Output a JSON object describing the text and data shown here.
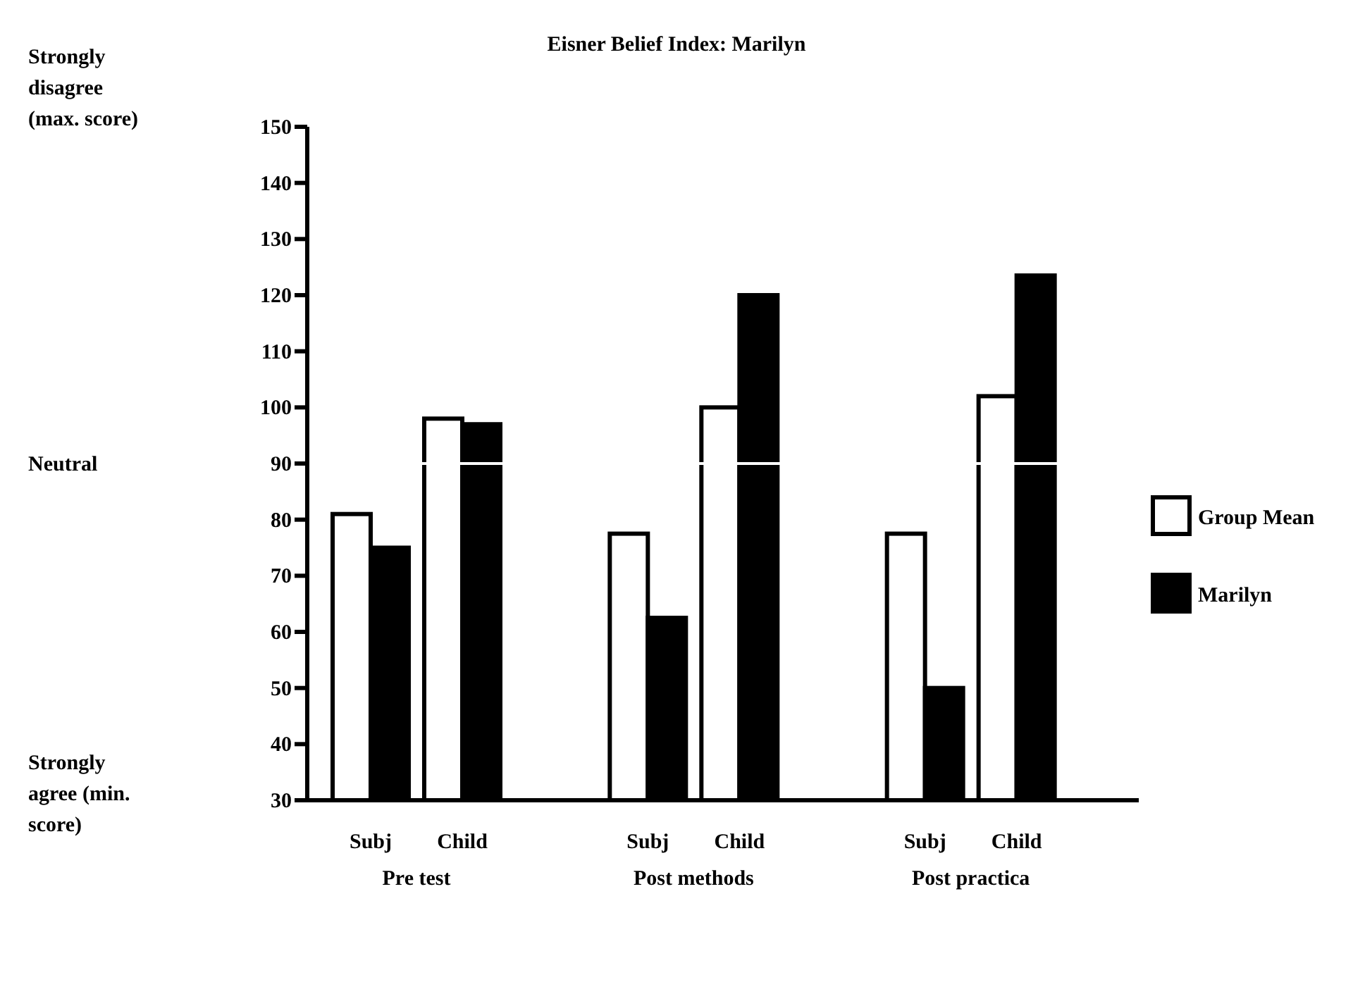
{
  "chart_data": {
    "type": "bar",
    "title": "Eisner Belief Index: Marilyn",
    "categories": [
      "Subj",
      "Child",
      "Subj",
      "Child",
      "Subj",
      "Child"
    ],
    "series": [
      {
        "name": "Group Mean",
        "color": "#ffffff",
        "values": [
          81,
          98,
          77.5,
          100,
          77.5,
          102
        ]
      },
      {
        "name": "Marilyn",
        "color": "#000000",
        "values": [
          75,
          97,
          62.5,
          120,
          50,
          123.5
        ]
      }
    ],
    "ylim": [
      30,
      150
    ],
    "yticks": [
      30,
      40,
      50,
      60,
      70,
      80,
      90,
      100,
      110,
      120,
      130,
      140,
      150
    ],
    "ref_lines": [
      {
        "axis": "y",
        "value": 90,
        "label": "Neutral",
        "color": "#ffffff"
      }
    ],
    "annotations": [
      "Strongly disagree (max. score)",
      "Strongly agree (min. score)",
      "Pre test",
      "Post methods",
      "Post practica"
    ],
    "legend": "right",
    "grid": false
  }
}
